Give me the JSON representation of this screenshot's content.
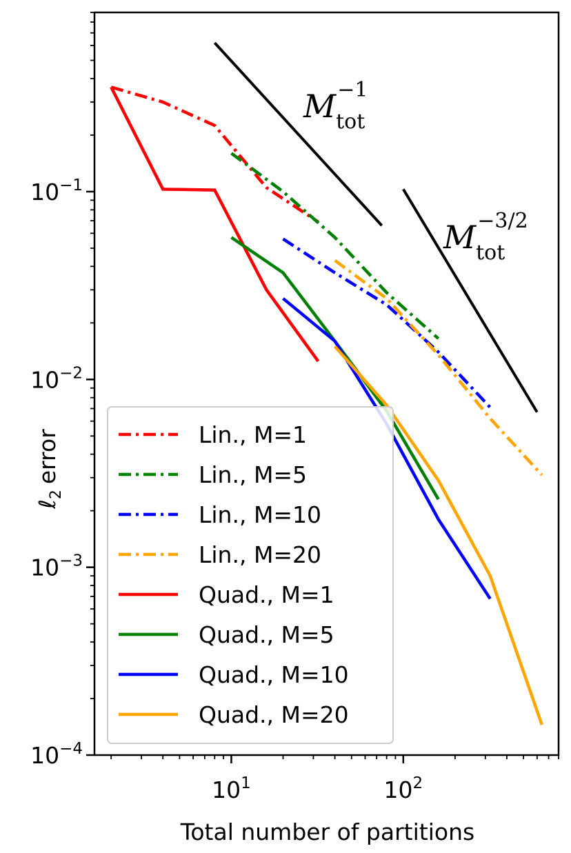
{
  "chart_data": {
    "type": "line",
    "xscale": "log",
    "yscale": "log",
    "xlabel": "Total number of partitions",
    "ylabel": "error",
    "ylabel_symbol": "ℓ",
    "ylabel_subscript": "2",
    "xlim": [
      1.6,
      800
    ],
    "ylim": [
      0.0001,
      0.9
    ],
    "grid": false,
    "legend_position": "lower-left",
    "x_ticks": [
      {
        "value": 10,
        "base": "10",
        "exp": "1"
      },
      {
        "value": 100,
        "base": "10",
        "exp": "2"
      }
    ],
    "y_ticks": [
      {
        "value": 0.1,
        "base": "10",
        "exp": "−1"
      },
      {
        "value": 0.01,
        "base": "10",
        "exp": "−2"
      },
      {
        "value": 0.001,
        "base": "10",
        "exp": "−3"
      },
      {
        "value": 0.0001,
        "base": "10",
        "exp": "−4"
      }
    ],
    "series": [
      {
        "name": "Lin., M=1",
        "style": "dashdot",
        "color": "#ff0000",
        "x": [
          2,
          4,
          8,
          16,
          32
        ],
        "y": [
          0.36,
          0.3,
          0.225,
          0.105,
          0.069
        ]
      },
      {
        "name": "Lin., M=5",
        "style": "dashdot",
        "color": "#008000",
        "x": [
          10,
          20,
          40,
          80,
          160
        ],
        "y": [
          0.16,
          0.1,
          0.057,
          0.029,
          0.0165
        ]
      },
      {
        "name": "Lin., M=10",
        "style": "dashdot",
        "color": "#0000ff",
        "x": [
          20,
          40,
          80,
          160,
          320
        ],
        "y": [
          0.056,
          0.037,
          0.025,
          0.014,
          0.0071
        ]
      },
      {
        "name": "Lin., M=20",
        "style": "dashdot",
        "color": "#ffa500",
        "x": [
          40,
          80,
          160,
          320,
          640
        ],
        "y": [
          0.043,
          0.027,
          0.0135,
          0.0062,
          0.0031
        ]
      },
      {
        "name": "Quad., M=1",
        "style": "solid",
        "color": "#ff0000",
        "x": [
          2,
          4,
          8,
          16,
          32
        ],
        "y": [
          0.36,
          0.103,
          0.102,
          0.03,
          0.0125
        ]
      },
      {
        "name": "Quad., M=5",
        "style": "solid",
        "color": "#008000",
        "x": [
          10,
          20,
          40,
          80,
          160
        ],
        "y": [
          0.057,
          0.037,
          0.016,
          0.0068,
          0.0023
        ]
      },
      {
        "name": "Quad., M=10",
        "style": "solid",
        "color": "#0000ff",
        "x": [
          20,
          40,
          80,
          160,
          320
        ],
        "y": [
          0.027,
          0.016,
          0.0058,
          0.0018,
          0.00068
        ]
      },
      {
        "name": "Quad., M=20",
        "style": "solid",
        "color": "#ffa500",
        "x": [
          40,
          80,
          160,
          320,
          640
        ],
        "y": [
          0.015,
          0.0073,
          0.0029,
          0.0009,
          0.000145
        ]
      }
    ],
    "reference_lines": [
      {
        "name": "slope-minus-1",
        "x": [
          8,
          75
        ],
        "y": [
          0.62,
          0.066
        ],
        "label": "M",
        "label_sub": "tot",
        "label_sup": "−1"
      },
      {
        "name": "slope-minus-3-2",
        "x": [
          100,
          600
        ],
        "y": [
          0.103,
          0.0067
        ],
        "label": "M",
        "label_sub": "tot",
        "label_sup": "−3/2"
      }
    ]
  }
}
